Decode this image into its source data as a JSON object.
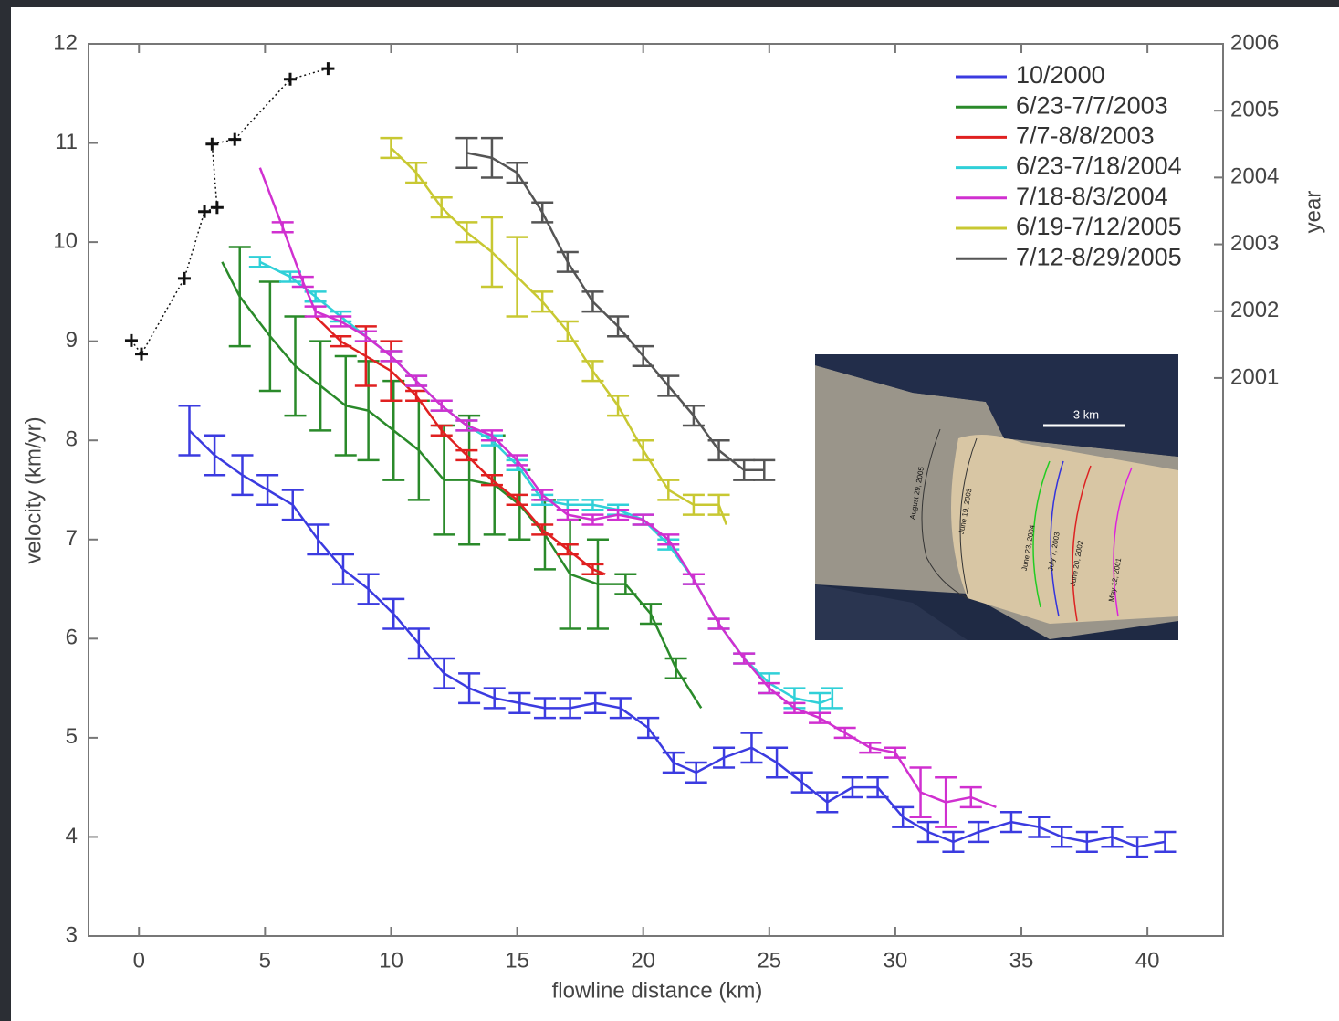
{
  "chart_data": {
    "type": "line",
    "xlabel": "flowline distance (km)",
    "ylabel": "velocity (km/yr)",
    "y2label": "year",
    "xlim": [
      -2,
      43
    ],
    "ylim": [
      3,
      12
    ],
    "y2lim": [
      1992.65,
      2006
    ],
    "xticks": [
      0,
      5,
      10,
      15,
      20,
      25,
      30,
      35,
      40
    ],
    "yticks": [
      3,
      4,
      5,
      6,
      7,
      8,
      9,
      10,
      11,
      12
    ],
    "y2ticks": [
      2001,
      2002,
      2003,
      2004,
      2005,
      2006
    ],
    "legend": "upper right",
    "grid": false,
    "series": [
      {
        "name": "10/2000",
        "color": "#3b3be0",
        "x": [
          2,
          3,
          4.1,
          5.1,
          6.1,
          7.1,
          8.1,
          9.1,
          10.1,
          11.1,
          12.1,
          13.1,
          14.1,
          15.1,
          16.1,
          17.1,
          18.1,
          19.1,
          20.2,
          21.2,
          22.1,
          23.2,
          24.3,
          25.3,
          26.3,
          27.3,
          28.3,
          29.3,
          30.3,
          31.3,
          32.3,
          33.3,
          34.6,
          35.7,
          36.6,
          37.6,
          38.6,
          39.6,
          40.7
        ],
        "values": [
          8.1,
          7.85,
          7.65,
          7.5,
          7.35,
          7.0,
          6.7,
          6.5,
          6.25,
          5.95,
          5.65,
          5.5,
          5.4,
          5.35,
          5.3,
          5.3,
          5.35,
          5.3,
          5.1,
          4.75,
          4.65,
          4.8,
          4.9,
          4.75,
          4.55,
          4.35,
          4.5,
          4.5,
          4.2,
          4.05,
          3.95,
          4.05,
          4.15,
          4.1,
          4.0,
          3.95,
          4.0,
          3.9,
          3.95
        ],
        "errors": [
          0.25,
          0.2,
          0.2,
          0.15,
          0.15,
          0.15,
          0.15,
          0.15,
          0.15,
          0.15,
          0.15,
          0.15,
          0.1,
          0.1,
          0.1,
          0.1,
          0.1,
          0.1,
          0.1,
          0.1,
          0.1,
          0.1,
          0.15,
          0.15,
          0.1,
          0.1,
          0.1,
          0.1,
          0.1,
          0.1,
          0.1,
          0.1,
          0.1,
          0.1,
          0.1,
          0.1,
          0.1,
          0.1,
          0.1
        ]
      },
      {
        "name": "6/23-7/7/2003",
        "color": "#2a8a2a",
        "x": [
          3.3,
          4,
          5.2,
          6.2,
          7.2,
          8.2,
          9.1,
          10.1,
          11.1,
          12.1,
          13.1,
          14.1,
          15.1,
          16.1,
          17.1,
          18.2,
          19.3,
          20.3,
          21.3,
          22.3
        ],
        "values": [
          9.8,
          9.45,
          9.05,
          8.75,
          8.55,
          8.35,
          8.3,
          8.1,
          7.9,
          7.6,
          7.6,
          7.55,
          7.35,
          7.05,
          6.65,
          6.55,
          6.55,
          6.25,
          5.7,
          5.3
        ],
        "errors": [
          null,
          0.5,
          0.55,
          0.5,
          0.45,
          0.5,
          0.5,
          0.5,
          0.5,
          0.55,
          0.65,
          0.5,
          0.35,
          0.35,
          0.55,
          0.45,
          0.1,
          0.1,
          0.1,
          null
        ]
      },
      {
        "name": "7/7-8/8/2003",
        "color": "#e02020",
        "x": [
          7,
          8,
          9,
          10,
          11,
          12,
          13,
          14,
          15,
          16,
          17,
          18,
          18.5
        ],
        "values": [
          9.25,
          9.0,
          8.85,
          8.7,
          8.45,
          8.1,
          7.85,
          7.6,
          7.4,
          7.1,
          6.9,
          6.7,
          6.65
        ],
        "errors": [
          null,
          0.05,
          0.3,
          0.3,
          0.05,
          0.05,
          0.05,
          0.05,
          0.05,
          0.05,
          0.05,
          0.05,
          null
        ]
      },
      {
        "name": "6/23-7/18/2004",
        "color": "#30d0d8",
        "x": [
          4.8,
          6,
          7,
          8,
          9,
          10,
          11,
          12,
          13,
          14,
          15,
          16,
          17,
          18,
          19,
          20,
          21,
          22,
          23,
          24,
          25,
          26,
          27,
          27.5
        ],
        "values": [
          9.8,
          9.65,
          9.45,
          9.25,
          9.05,
          8.85,
          8.6,
          8.35,
          8.15,
          8.0,
          7.75,
          7.4,
          7.35,
          7.35,
          7.3,
          7.2,
          6.95,
          6.6,
          6.15,
          5.8,
          5.55,
          5.4,
          5.35,
          5.4
        ],
        "errors": [
          0.05,
          0.05,
          0.05,
          0.05,
          0.05,
          0.05,
          0.05,
          0.05,
          0.05,
          0.05,
          0.05,
          0.05,
          0.05,
          0.05,
          0.05,
          0.05,
          0.05,
          0.05,
          0.05,
          0.05,
          0.1,
          0.1,
          0.1,
          0.1
        ]
      },
      {
        "name": "7/18-8/3/2004",
        "color": "#d030d0",
        "x": [
          4.8,
          5.7,
          6.5,
          7,
          8,
          9,
          10,
          11,
          12,
          13,
          14,
          15,
          16,
          17,
          18,
          19,
          20,
          21,
          22,
          23,
          24,
          25,
          26,
          27,
          28,
          29,
          30,
          31,
          32,
          33,
          34
        ],
        "values": [
          10.75,
          10.15,
          9.6,
          9.3,
          9.2,
          9.05,
          8.85,
          8.6,
          8.35,
          8.15,
          8.05,
          7.8,
          7.45,
          7.25,
          7.2,
          7.25,
          7.2,
          7.0,
          6.6,
          6.15,
          5.8,
          5.5,
          5.3,
          5.2,
          5.05,
          4.9,
          4.85,
          4.45,
          4.35,
          4.4,
          4.3
        ],
        "errors": [
          null,
          0.05,
          0.05,
          0.05,
          0.05,
          0.05,
          0.05,
          0.05,
          0.05,
          0.05,
          0.05,
          0.05,
          0.05,
          0.05,
          0.05,
          0.05,
          0.05,
          0.05,
          0.05,
          0.05,
          0.05,
          0.05,
          0.05,
          0.05,
          0.05,
          0.05,
          0.05,
          0.25,
          0.25,
          0.1,
          null
        ]
      },
      {
        "name": "6/19-7/12/2005",
        "color": "#c8c832",
        "x": [
          10,
          11,
          12,
          13,
          14,
          15,
          16,
          17,
          18,
          19,
          20,
          21,
          22,
          23,
          23.3
        ],
        "values": [
          10.95,
          10.7,
          10.35,
          10.1,
          9.9,
          9.65,
          9.4,
          9.1,
          8.7,
          8.35,
          7.9,
          7.5,
          7.35,
          7.35,
          7.15
        ],
        "errors": [
          0.1,
          0.1,
          0.1,
          0.1,
          0.35,
          0.4,
          0.1,
          0.1,
          0.1,
          0.1,
          0.1,
          0.1,
          0.1,
          0.1,
          null
        ]
      },
      {
        "name": "7/12-8/29/2005",
        "color": "#555555",
        "x": [
          13,
          14,
          15,
          16,
          17,
          18,
          19,
          20,
          21,
          22,
          23,
          24,
          24.8
        ],
        "values": [
          10.9,
          10.85,
          10.7,
          10.3,
          9.8,
          9.4,
          9.15,
          8.85,
          8.55,
          8.25,
          7.9,
          7.7,
          7.7
        ],
        "errors": [
          0.15,
          0.2,
          0.1,
          0.1,
          0.1,
          0.1,
          0.1,
          0.1,
          0.1,
          0.1,
          0.1,
          0.1,
          0.1
        ]
      },
      {
        "color": "#111111",
        "axis": "y2",
        "line_style": "dotted",
        "marker": "+",
        "x": [
          -0.3,
          0.1,
          1.8,
          2.6,
          3.1,
          2.9,
          3.8,
          6,
          7.5
        ],
        "values": [
          2001.56,
          2001.36,
          2002.49,
          2003.49,
          2003.55,
          2004.5,
          2004.57,
          2005.47,
          2005.63
        ]
      }
    ]
  },
  "inset": {
    "scale_label": "3 km",
    "front_labels": [
      "August 29, 2005",
      "June 19, 2003",
      "June 23, 2004",
      "July 7, 2003",
      "June 20, 2002",
      "May 12, 2001"
    ]
  }
}
